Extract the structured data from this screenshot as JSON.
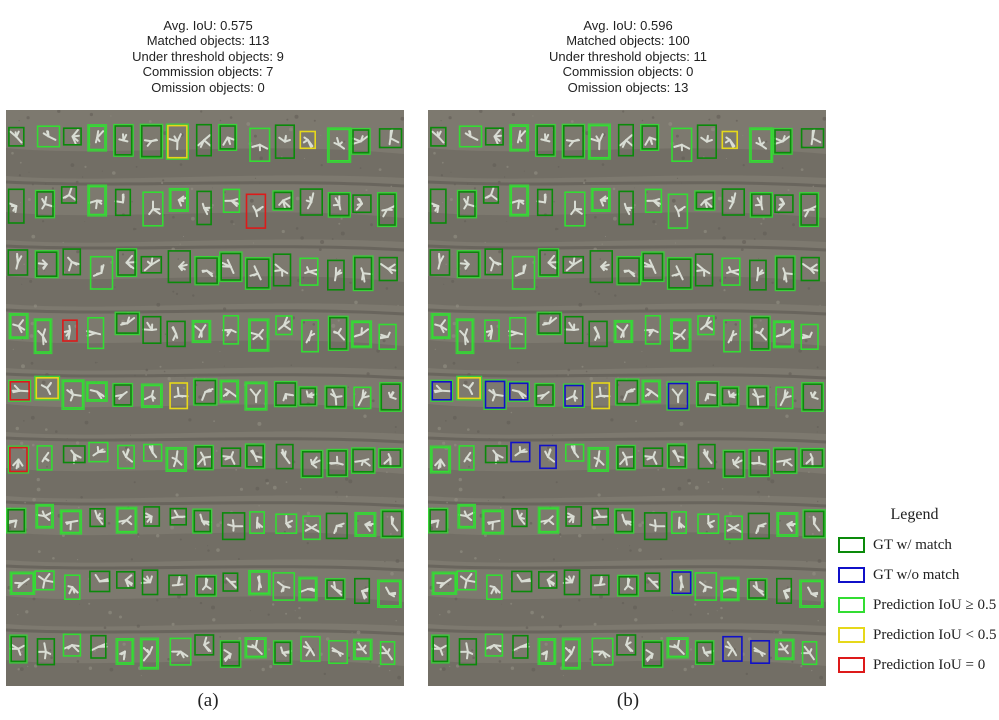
{
  "panels": [
    {
      "stats": [
        "Avg. IoU: 0.575",
        "Matched objects: 113",
        "Under threshold objects: 9",
        "Commission objects: 7",
        "Omission objects: 0"
      ],
      "caption": "(a)",
      "mode": "a"
    },
    {
      "stats": [
        "Avg. IoU: 0.596",
        "Matched objects: 100",
        "Under threshold objects: 11",
        "Commission objects: 0",
        "Omission objects: 13"
      ],
      "caption": "(b)",
      "mode": "b"
    }
  ],
  "legend": {
    "title": "Legend",
    "items": [
      {
        "label": "GT w/ match",
        "color": "#0a8a0a"
      },
      {
        "label": "GT w/o match",
        "color": "#1010c8"
      },
      {
        "label": "Prediction IoU ≥ 0.5",
        "color": "#33dd33"
      },
      {
        "label": "Prediction IoU < 0.5",
        "color": "#e6d81a"
      },
      {
        "label": "Prediction IoU = 0",
        "color": "#dd1a1a"
      }
    ]
  }
}
